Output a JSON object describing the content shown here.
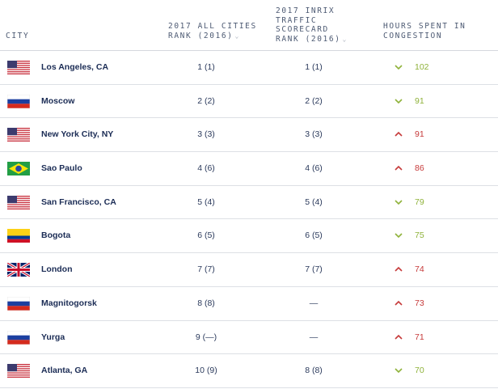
{
  "headers": {
    "city": "CITY",
    "rank": "2017 ALL CITIES\nRANK (2016)",
    "inrix": "2017 INRIX\nTRAFFIC\nSCORECARD\nRANK (2016)",
    "hours": "HOURS SPENT IN\nCONGESTION",
    "sort_icon": "chevron-down-icon"
  },
  "colors": {
    "down": "#8fb23a",
    "up": "#c63a3a"
  },
  "rows": [
    {
      "city": "Los Angeles, CA",
      "flag": "usa",
      "rank": "1 (1)",
      "inrix": "1 (1)",
      "trend": "down",
      "hours": "102"
    },
    {
      "city": "Moscow",
      "flag": "russia",
      "rank": "2 (2)",
      "inrix": "2 (2)",
      "trend": "down",
      "hours": "91"
    },
    {
      "city": "New York City, NY",
      "flag": "usa",
      "rank": "3 (3)",
      "inrix": "3 (3)",
      "trend": "up",
      "hours": "91"
    },
    {
      "city": "Sao Paulo",
      "flag": "brazil",
      "rank": "4 (6)",
      "inrix": "4 (6)",
      "trend": "up",
      "hours": "86"
    },
    {
      "city": "San Francisco, CA",
      "flag": "usa",
      "rank": "5 (4)",
      "inrix": "5 (4)",
      "trend": "down",
      "hours": "79"
    },
    {
      "city": "Bogota",
      "flag": "colombia",
      "rank": "6 (5)",
      "inrix": "6 (5)",
      "trend": "down",
      "hours": "75"
    },
    {
      "city": "London",
      "flag": "uk",
      "rank": "7 (7)",
      "inrix": "7 (7)",
      "trend": "up",
      "hours": "74"
    },
    {
      "city": "Magnitogorsk",
      "flag": "russia",
      "rank": "8 (8)",
      "inrix": "—",
      "trend": "up",
      "hours": "73"
    },
    {
      "city": "Yurga",
      "flag": "russia",
      "rank": "9 (—)",
      "inrix": "—",
      "trend": "up",
      "hours": "71"
    },
    {
      "city": "Atlanta, GA",
      "flag": "usa",
      "rank": "10 (9)",
      "inrix": "8 (8)",
      "trend": "down",
      "hours": "70"
    }
  ]
}
